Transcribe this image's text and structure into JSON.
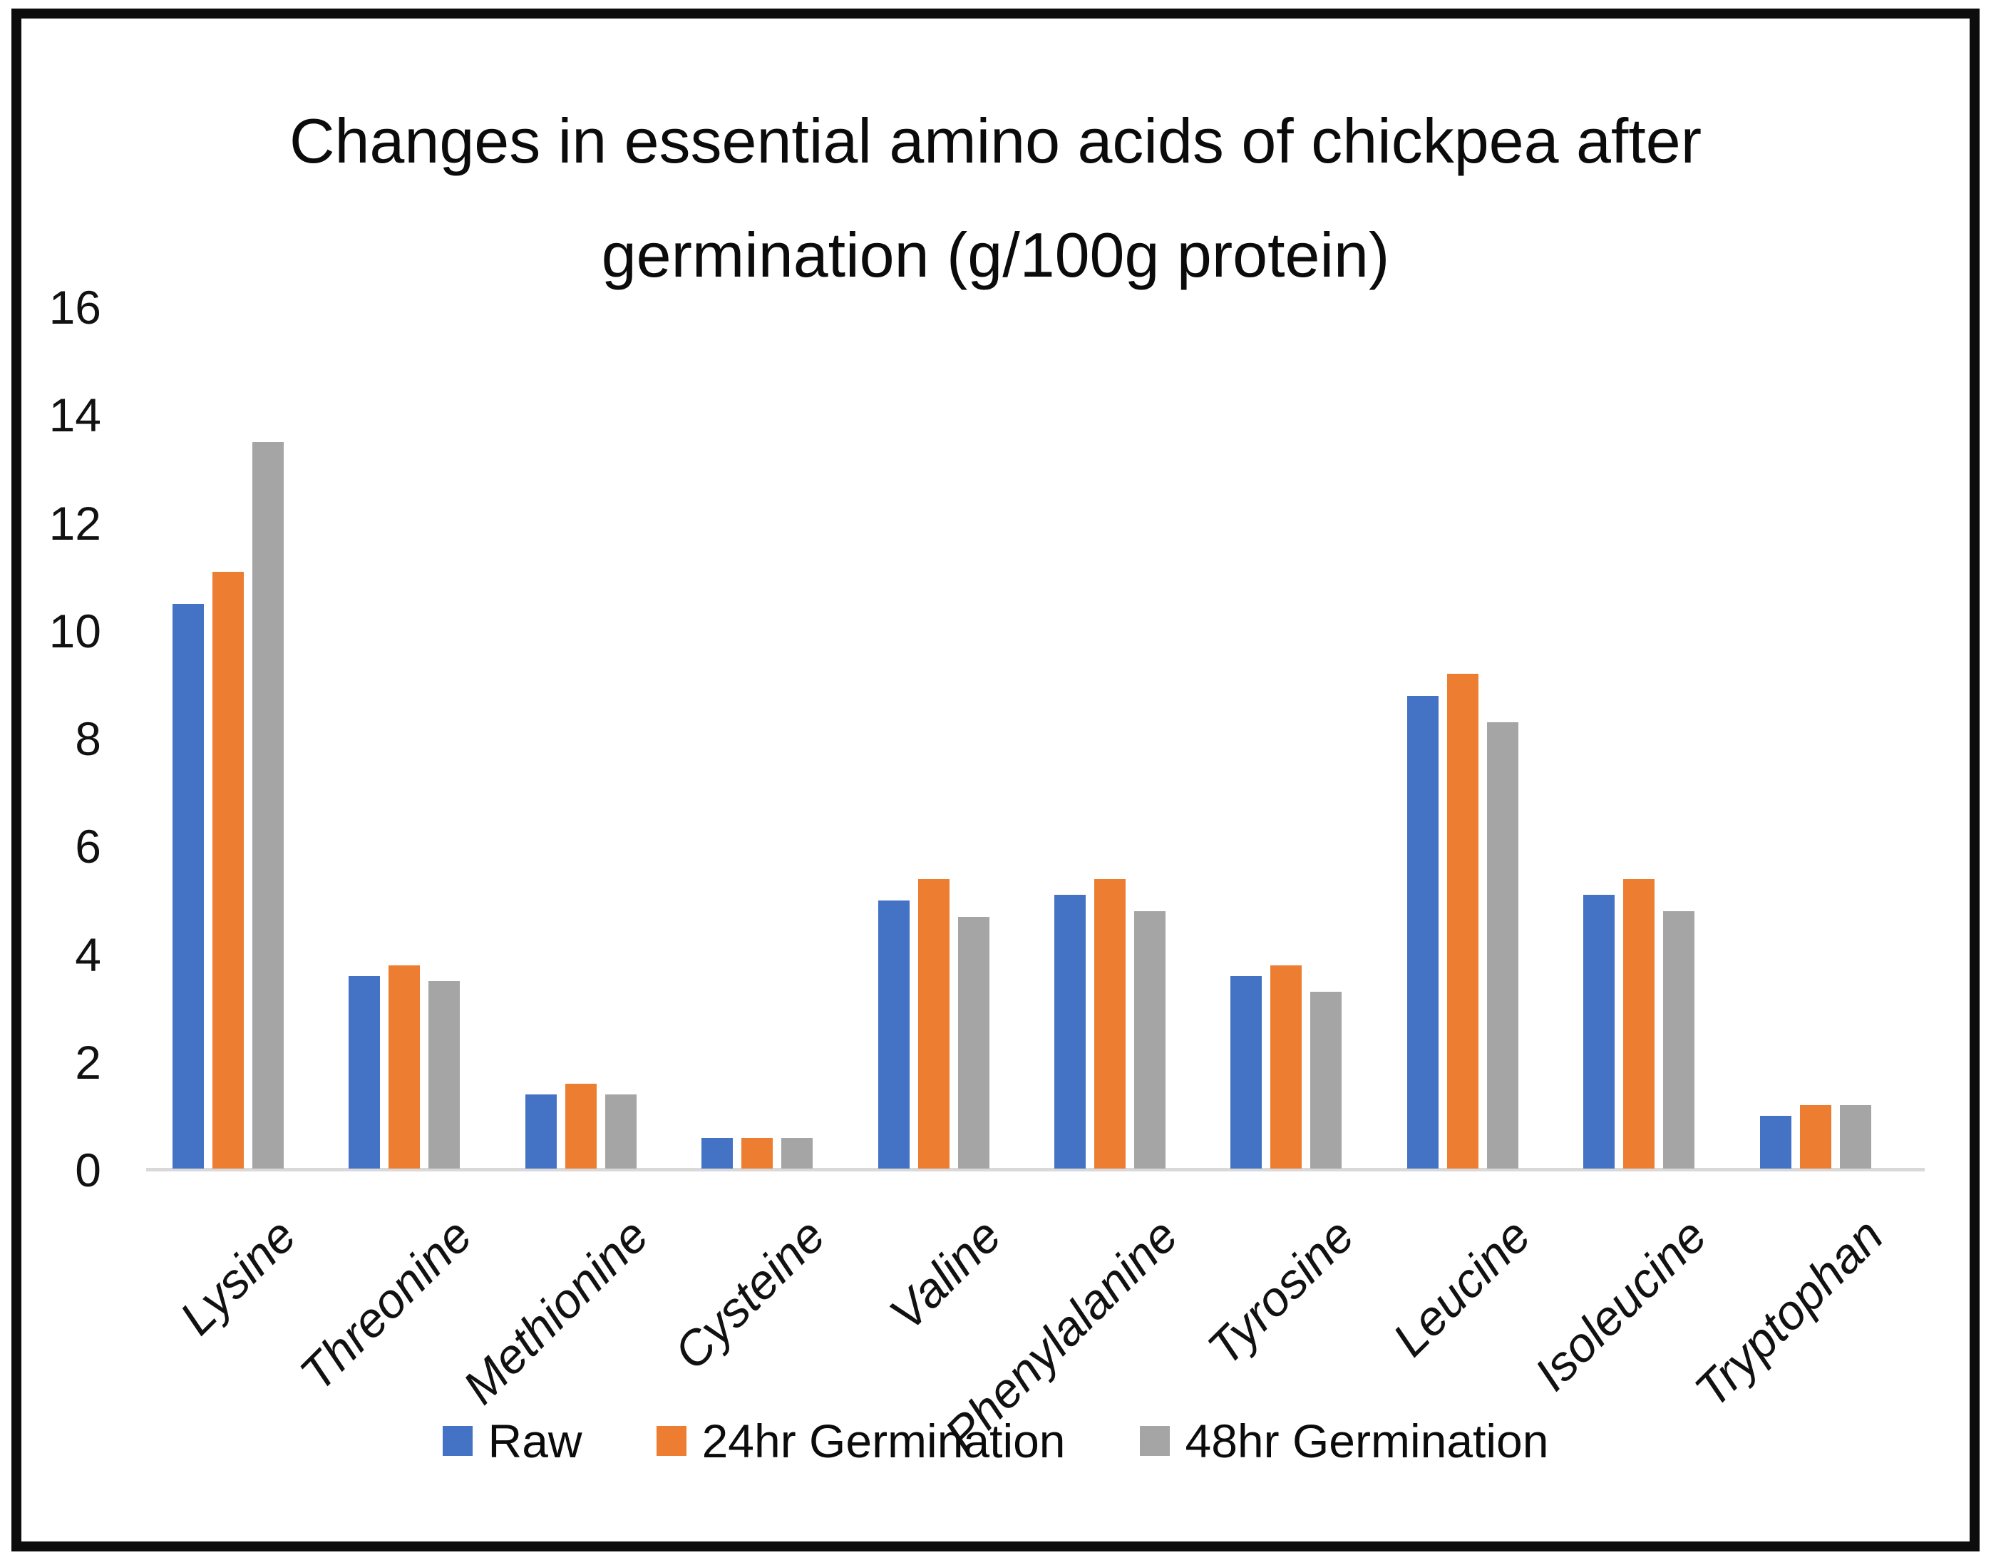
{
  "chart_data": {
    "type": "bar",
    "title": "Changes in essential amino acids of chickpea after germination (g/100g protein)",
    "title_lines": [
      "Changes in essential amino acids of chickpea after",
      "germination (g/100g protein)"
    ],
    "categories": [
      "Lysine",
      "Threonine",
      "Methionine",
      "Cysteine",
      "Valine",
      "Phenylalanine",
      "Tyrosine",
      "Leucine",
      "Isoleucine",
      "Tryptophan"
    ],
    "series": [
      {
        "name": "Raw",
        "color": "#4472C4",
        "values": [
          10.5,
          3.6,
          1.4,
          0.6,
          5.0,
          5.1,
          3.6,
          8.8,
          5.1,
          1.0
        ]
      },
      {
        "name": "24hr Germination",
        "color": "#ED7D31",
        "values": [
          11.1,
          3.8,
          1.6,
          0.6,
          5.4,
          5.4,
          3.8,
          9.2,
          5.4,
          1.2
        ]
      },
      {
        "name": "48hr Germination",
        "color": "#A5A5A5",
        "values": [
          13.5,
          3.5,
          1.4,
          0.6,
          4.7,
          4.8,
          3.3,
          8.3,
          4.8,
          1.2
        ]
      }
    ],
    "ylim": [
      0,
      16
    ],
    "yticks": [
      0,
      2,
      4,
      6,
      8,
      10,
      12,
      14,
      16
    ],
    "xlabel": "",
    "ylabel": "",
    "legend_position": "bottom",
    "grid": false,
    "axis_line_color": "#D9D9D9",
    "text_color": "#000000"
  }
}
